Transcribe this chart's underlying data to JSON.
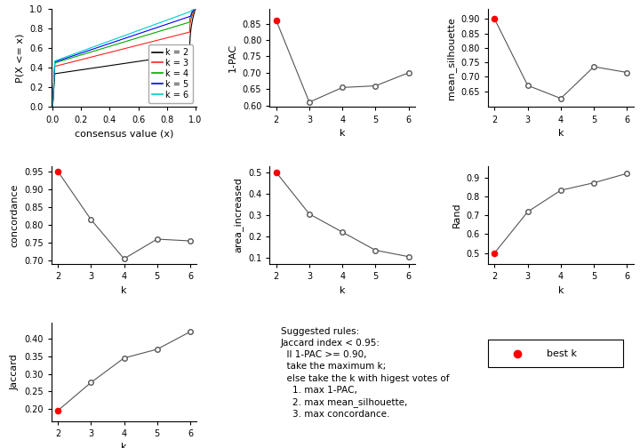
{
  "k_values": [
    2,
    3,
    4,
    5,
    6
  ],
  "one_minus_pac": [
    0.86,
    0.61,
    0.655,
    0.66,
    0.7
  ],
  "mean_silhouette": [
    0.9,
    0.67,
    0.625,
    0.735,
    0.715
  ],
  "concordance": [
    0.95,
    0.815,
    0.705,
    0.76,
    0.755
  ],
  "area_increased": [
    0.5,
    0.305,
    0.22,
    0.135,
    0.105
  ],
  "rand": [
    0.5,
    0.72,
    0.835,
    0.875,
    0.925
  ],
  "jaccard": [
    0.195,
    0.275,
    0.345,
    0.37,
    0.42
  ],
  "best_k_pac": 0,
  "best_k_sil": 0,
  "best_k_conc": 0,
  "best_k_area": 0,
  "best_k_rand": 0,
  "best_k_jacc": 0,
  "line_color": "#555555",
  "open_circle_facecolor": "white",
  "open_circle_edgecolor": "#555555",
  "best_k_color": "#ff0000",
  "ecdf_colors": [
    "#000000",
    "#ff2020",
    "#00aa00",
    "#0000ff",
    "#00cccc"
  ],
  "ecdf_labels": [
    "k = 2",
    "k = 3",
    "k = 4",
    "k = 5",
    "k = 6"
  ],
  "axis_label_fontsize": 8,
  "tick_fontsize": 7,
  "legend_fontsize": 7.5,
  "text_fontsize": 7.5
}
